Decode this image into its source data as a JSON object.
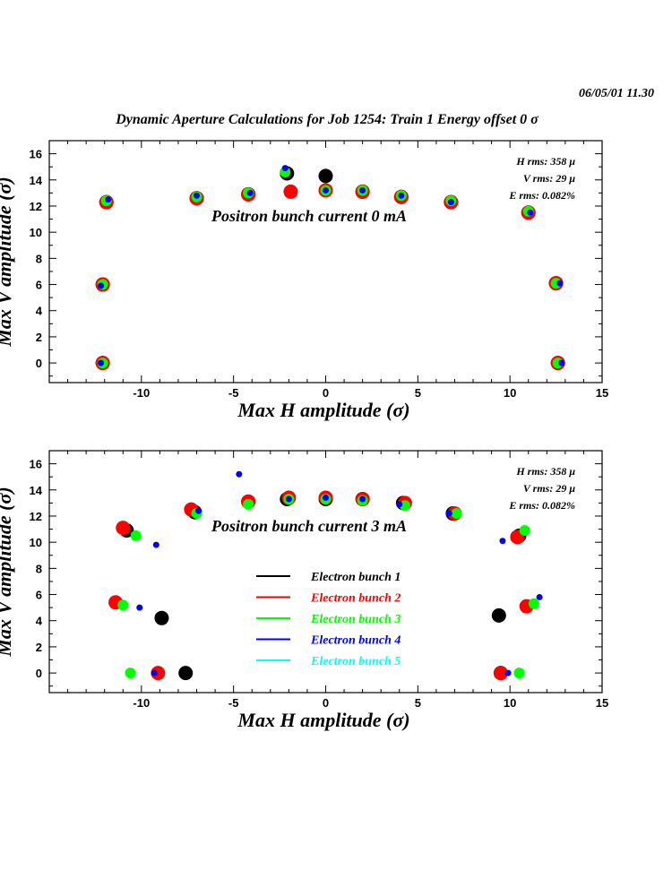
{
  "header": {
    "timestamp": "06/05/01   11.30",
    "title": "Dynamic Aperture Calculations for Job 1254:  Train 1   Energy offset  0 σ"
  },
  "colors": {
    "bunch1": "#000000",
    "bunch2": "#ff0000",
    "bunch3": "#00ff00",
    "bunch4": "#0000ff",
    "bunch5": "#00ffff"
  },
  "chart_data": [
    {
      "type": "scatter",
      "xlabel": "Max H amplitude (σ)",
      "ylabel": "Max V amplitude (σ)",
      "xlim": [
        -15,
        15
      ],
      "ylim": [
        -1.5,
        17
      ],
      "xticks": [
        -10,
        -5,
        0,
        5,
        10,
        15
      ],
      "xtick_labels": [
        "-10",
        "-5",
        "0",
        "5",
        "10",
        "15"
      ],
      "yticks": [
        0,
        2,
        4,
        6,
        8,
        10,
        12,
        14,
        16
      ],
      "ytick_labels": [
        "0",
        "2",
        "4",
        "6",
        "8",
        "10",
        "12",
        "14",
        "16"
      ],
      "annotations": [
        "H rms: 358 μ",
        "V rms: 29 μ",
        "E rms: 0.082%"
      ],
      "label": "Positron bunch current  0 mA",
      "series": [
        {
          "name": "Electron bunch 1",
          "color": "#000000",
          "x": [
            -12.1,
            -12.1,
            -11.9,
            -7.0,
            -4.2,
            -2.1,
            0.0,
            2.0,
            4.1,
            6.8,
            11.0,
            12.5,
            12.6
          ],
          "y": [
            0.0,
            6.0,
            12.3,
            12.6,
            12.9,
            14.5,
            14.3,
            13.1,
            12.7,
            12.3,
            11.5,
            6.1,
            0.0
          ]
        },
        {
          "name": "Electron bunch 2",
          "color": "#ff0000",
          "x": [
            -12.1,
            -12.1,
            -11.9,
            -7.0,
            -4.2,
            -1.9,
            0.0,
            2.0,
            4.1,
            6.8,
            11.0,
            12.5,
            12.6
          ],
          "y": [
            0.0,
            6.0,
            12.3,
            12.6,
            12.9,
            13.1,
            13.2,
            13.1,
            12.7,
            12.3,
            11.5,
            6.1,
            0.0
          ]
        },
        {
          "name": "Electron bunch 3",
          "color": "#00ff00",
          "x": [
            -12.1,
            -12.1,
            -11.9,
            -7.0,
            -4.2,
            -2.2,
            0.0,
            2.0,
            4.1,
            6.8,
            11.0,
            12.5,
            12.6
          ],
          "y": [
            0.0,
            6.0,
            12.4,
            12.7,
            13.0,
            14.6,
            13.2,
            13.2,
            12.8,
            12.4,
            11.6,
            6.1,
            0.0
          ]
        },
        {
          "name": "Electron bunch 4",
          "color": "#0000ff",
          "x": [
            -12.2,
            -12.2,
            -11.8,
            -7.0,
            -4.1,
            -2.2,
            0.0,
            2.0,
            4.1,
            6.8,
            11.1,
            12.7,
            12.8
          ],
          "y": [
            0.0,
            5.9,
            12.5,
            12.8,
            13.0,
            14.9,
            13.2,
            13.2,
            12.8,
            12.3,
            11.5,
            6.1,
            0.0
          ]
        },
        {
          "name": "Electron bunch 5",
          "color": "#00ffff",
          "x": [],
          "y": []
        }
      ]
    },
    {
      "type": "scatter",
      "xlabel": "Max H amplitude (σ)",
      "ylabel": "Max V amplitude (σ)",
      "xlim": [
        -15,
        15
      ],
      "ylim": [
        -1.5,
        17
      ],
      "xticks": [
        -10,
        -5,
        0,
        5,
        10,
        15
      ],
      "xtick_labels": [
        "-10",
        "-5",
        "0",
        "5",
        "10",
        "15"
      ],
      "yticks": [
        0,
        2,
        4,
        6,
        8,
        10,
        12,
        14,
        16
      ],
      "ytick_labels": [
        "0",
        "2",
        "4",
        "6",
        "8",
        "10",
        "12",
        "14",
        "16"
      ],
      "annotations": [
        "H rms: 358 μ",
        "V rms: 29 μ",
        "E rms: 0.082%"
      ],
      "label": "Positron bunch current  3 mA",
      "legend": [
        "Electron bunch 1",
        "Electron bunch 2",
        "Electron bunch 3",
        "Electron bunch 4",
        "Electron bunch 5"
      ],
      "series": [
        {
          "name": "Electron bunch 1",
          "color": "#000000",
          "x": [
            -7.6,
            -8.9,
            -10.8,
            -7.1,
            -4.2,
            -2.1,
            0.0,
            2.0,
            4.2,
            6.9,
            9.5,
            9.4,
            10.5
          ],
          "y": [
            0.0,
            4.2,
            10.9,
            12.3,
            13.1,
            13.3,
            13.3,
            13.3,
            13.0,
            12.2,
            0.0,
            4.4,
            10.5
          ]
        },
        {
          "name": "Electron bunch 2",
          "color": "#ff0000",
          "x": [
            -9.1,
            -11.4,
            -11.0,
            -7.3,
            -4.2,
            -2.0,
            0.0,
            2.0,
            4.3,
            7.0,
            9.5,
            10.9,
            10.4
          ],
          "y": [
            0.0,
            5.4,
            11.1,
            12.5,
            13.1,
            13.4,
            13.4,
            13.3,
            13.0,
            12.2,
            0.0,
            5.1,
            10.4
          ]
        },
        {
          "name": "Electron bunch 3",
          "color": "#00ff00",
          "x": [
            -10.6,
            -11.0,
            -10.3,
            -7.0,
            -4.2,
            -2.0,
            0.0,
            2.0,
            4.3,
            7.1,
            10.5,
            11.3,
            10.8
          ],
          "y": [
            0.0,
            5.2,
            10.5,
            12.2,
            12.9,
            13.3,
            13.3,
            13.2,
            12.8,
            12.2,
            0.0,
            5.3,
            10.9
          ]
        },
        {
          "name": "Electron bunch 4",
          "color": "#0000ff",
          "x": [
            -9.3,
            -10.1,
            -9.2,
            -6.9,
            -4.7,
            -2.0,
            0.0,
            2.0,
            4.0,
            6.7,
            9.9,
            11.6,
            9.6
          ],
          "y": [
            0.0,
            5.0,
            9.8,
            12.4,
            15.2,
            13.3,
            13.4,
            13.3,
            12.9,
            12.2,
            0.0,
            5.8,
            10.1
          ]
        },
        {
          "name": "Electron bunch 5",
          "color": "#00ffff",
          "x": [],
          "y": []
        }
      ]
    }
  ]
}
